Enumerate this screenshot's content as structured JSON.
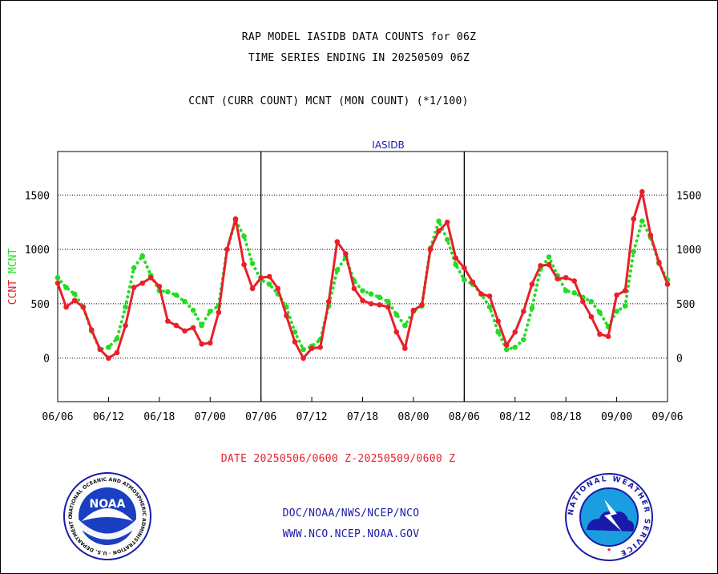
{
  "title_line1": "RAP MODEL IASIDB DATA COUNTS for 06Z",
  "title_line2": "TIME SERIES ENDING IN 20250509 06Z",
  "subtitle": "CCNT (CURR COUNT) MCNT (MON COUNT) (*1/100)",
  "date_range": "DATE 20250506/0600 Z-20250509/0600 Z",
  "footer_line1": "DOC/NOAA/NWS/NCEP/NCO",
  "footer_line2": "WWW.NCO.NCEP.NOAA.GOV",
  "logo_left_text": "NOAA",
  "logo_left_ring": "NATIONAL OCEANIC AND ATMOSPHERIC ADMINISTRATION · U.S. DEPARTMENT OF COMMERCE",
  "logo_right_ring": "NATIONAL WEATHER SERVICE",
  "colors": {
    "ccnt": "#e8202a",
    "mcnt": "#22dd22",
    "date": "#e8202a",
    "footer": "#1a1aaa",
    "panel_title": "#1a1aaa"
  },
  "chart_data": {
    "type": "line",
    "panel_title": "IASIDB",
    "ylabel_parts": [
      "CCNT",
      "MCNT"
    ],
    "yticks": [
      0,
      500,
      1000,
      1500
    ],
    "ylim": [
      -400,
      1900
    ],
    "xlim": [
      0,
      72
    ],
    "xtick_labels": [
      "06/06",
      "06/12",
      "06/18",
      "07/00",
      "07/06",
      "07/12",
      "07/18",
      "08/00",
      "08/06",
      "08/12",
      "08/18",
      "09/00",
      "09/06"
    ],
    "panel_dividers": [
      24,
      48
    ],
    "grid": "horizontal dotted",
    "series": [
      {
        "name": "CCNT",
        "values": [
          [
            0,
            690
          ],
          [
            1,
            470
          ],
          [
            2,
            530
          ],
          [
            3,
            470
          ],
          [
            4,
            260
          ],
          [
            5,
            80
          ],
          [
            6,
            0
          ],
          [
            7,
            50
          ],
          [
            8,
            300
          ],
          [
            9,
            650
          ],
          [
            10,
            690
          ],
          [
            11,
            740
          ],
          [
            12,
            660
          ],
          [
            13,
            340
          ],
          [
            14,
            300
          ],
          [
            15,
            250
          ],
          [
            16,
            280
          ],
          [
            17,
            130
          ],
          [
            18,
            140
          ],
          [
            19,
            420
          ],
          [
            20,
            1000
          ],
          [
            21,
            1280
          ],
          [
            22,
            860
          ],
          [
            23,
            640
          ],
          [
            24,
            740
          ],
          [
            25,
            750
          ],
          [
            26,
            640
          ],
          [
            27,
            390
          ],
          [
            28,
            150
          ],
          [
            29,
            0
          ],
          [
            30,
            90
          ],
          [
            31,
            100
          ],
          [
            32,
            520
          ],
          [
            33,
            1070
          ],
          [
            34,
            960
          ],
          [
            35,
            640
          ],
          [
            36,
            530
          ],
          [
            37,
            500
          ],
          [
            38,
            490
          ],
          [
            39,
            470
          ],
          [
            40,
            240
          ],
          [
            41,
            90
          ],
          [
            42,
            440
          ],
          [
            43,
            490
          ],
          [
            44,
            1000
          ],
          [
            45,
            1170
          ],
          [
            46,
            1250
          ],
          [
            47,
            920
          ],
          [
            48,
            830
          ],
          [
            49,
            700
          ],
          [
            50,
            590
          ],
          [
            51,
            570
          ],
          [
            52,
            340
          ],
          [
            53,
            120
          ],
          [
            54,
            240
          ],
          [
            55,
            430
          ],
          [
            56,
            680
          ],
          [
            57,
            850
          ],
          [
            58,
            860
          ],
          [
            59,
            730
          ],
          [
            60,
            740
          ],
          [
            61,
            710
          ],
          [
            62,
            520
          ],
          [
            63,
            380
          ],
          [
            64,
            220
          ],
          [
            65,
            200
          ],
          [
            66,
            580
          ],
          [
            67,
            620
          ],
          [
            68,
            1280
          ],
          [
            69,
            1530
          ],
          [
            70,
            1130
          ],
          [
            71,
            880
          ],
          [
            72,
            680
          ]
        ]
      },
      {
        "name": "MCNT",
        "values": [
          [
            0,
            740
          ],
          [
            1,
            650
          ],
          [
            2,
            590
          ],
          [
            3,
            470
          ],
          [
            4,
            250
          ],
          [
            5,
            80
          ],
          [
            6,
            100
          ],
          [
            7,
            180
          ],
          [
            8,
            470
          ],
          [
            9,
            830
          ],
          [
            10,
            940
          ],
          [
            11,
            760
          ],
          [
            12,
            620
          ],
          [
            13,
            610
          ],
          [
            14,
            580
          ],
          [
            15,
            520
          ],
          [
            16,
            440
          ],
          [
            17,
            300
          ],
          [
            18,
            430
          ],
          [
            19,
            480
          ],
          [
            20,
            1000
          ],
          [
            21,
            1270
          ],
          [
            22,
            1120
          ],
          [
            23,
            870
          ],
          [
            24,
            720
          ],
          [
            25,
            680
          ],
          [
            26,
            590
          ],
          [
            27,
            470
          ],
          [
            28,
            240
          ],
          [
            29,
            80
          ],
          [
            30,
            110
          ],
          [
            31,
            170
          ],
          [
            32,
            480
          ],
          [
            33,
            810
          ],
          [
            34,
            930
          ],
          [
            35,
            710
          ],
          [
            36,
            620
          ],
          [
            37,
            590
          ],
          [
            38,
            560
          ],
          [
            39,
            520
          ],
          [
            40,
            400
          ],
          [
            41,
            300
          ],
          [
            42,
            430
          ],
          [
            43,
            480
          ],
          [
            44,
            1010
          ],
          [
            45,
            1260
          ],
          [
            46,
            1090
          ],
          [
            47,
            860
          ],
          [
            48,
            720
          ],
          [
            49,
            680
          ],
          [
            50,
            590
          ],
          [
            51,
            470
          ],
          [
            52,
            240
          ],
          [
            53,
            80
          ],
          [
            54,
            100
          ],
          [
            55,
            170
          ],
          [
            56,
            460
          ],
          [
            57,
            820
          ],
          [
            58,
            930
          ],
          [
            59,
            760
          ],
          [
            60,
            620
          ],
          [
            61,
            600
          ],
          [
            62,
            560
          ],
          [
            63,
            520
          ],
          [
            64,
            420
          ],
          [
            65,
            290
          ],
          [
            66,
            430
          ],
          [
            67,
            480
          ],
          [
            68,
            980
          ],
          [
            69,
            1260
          ],
          [
            70,
            1110
          ],
          [
            71,
            870
          ],
          [
            72,
            720
          ]
        ]
      }
    ]
  }
}
